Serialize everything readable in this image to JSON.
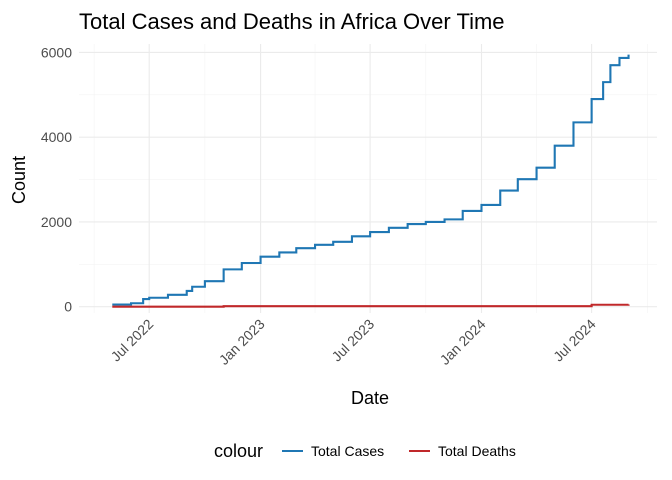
{
  "chart_data": {
    "type": "line",
    "title": "Total Cases and Deaths in Africa Over Time",
    "xlabel": "Date",
    "ylabel": "Count",
    "x_type": "date",
    "xlim": [
      "2022-03-07",
      "2024-10-17"
    ],
    "ylim": [
      -150,
      6200
    ],
    "x_ticks": [
      {
        "date": "2022-07-01",
        "label": "Jul 2022"
      },
      {
        "date": "2023-01-01",
        "label": "Jan 2023"
      },
      {
        "date": "2023-07-01",
        "label": "Jul 2023"
      },
      {
        "date": "2024-01-01",
        "label": "Jan 2024"
      },
      {
        "date": "2024-07-01",
        "label": "Jul 2024"
      }
    ],
    "x_minor_ticks": [
      "2022-04-01",
      "2022-10-01",
      "2023-04-01",
      "2023-10-01",
      "2024-04-01",
      "2024-10-01"
    ],
    "y_ticks": [
      0,
      2000,
      4000,
      6000
    ],
    "y_minor_ticks": [
      1000,
      3000,
      5000
    ],
    "grid": true,
    "legend": {
      "title": "colour",
      "position": "bottom",
      "entries": [
        {
          "label": "Total Cases",
          "color": "#1f77b4"
        },
        {
          "label": "Total Deaths",
          "color": "#c0282a"
        }
      ]
    },
    "series": [
      {
        "name": "Total Cases",
        "color": "#1f77b4",
        "step": true,
        "points": [
          [
            "2022-05-01",
            50
          ],
          [
            "2022-06-01",
            80
          ],
          [
            "2022-06-21",
            180
          ],
          [
            "2022-07-01",
            210
          ],
          [
            "2022-08-01",
            280
          ],
          [
            "2022-09-01",
            370
          ],
          [
            "2022-09-10",
            470
          ],
          [
            "2022-10-01",
            600
          ],
          [
            "2022-11-01",
            880
          ],
          [
            "2022-12-01",
            1030
          ],
          [
            "2023-01-01",
            1180
          ],
          [
            "2023-02-01",
            1280
          ],
          [
            "2023-03-01",
            1380
          ],
          [
            "2023-04-01",
            1460
          ],
          [
            "2023-05-01",
            1530
          ],
          [
            "2023-06-01",
            1660
          ],
          [
            "2023-07-01",
            1760
          ],
          [
            "2023-08-01",
            1860
          ],
          [
            "2023-09-01",
            1950
          ],
          [
            "2023-10-01",
            2000
          ],
          [
            "2023-11-01",
            2060
          ],
          [
            "2023-12-01",
            2260
          ],
          [
            "2024-01-01",
            2400
          ],
          [
            "2024-02-01",
            2740
          ],
          [
            "2024-03-01",
            3010
          ],
          [
            "2024-04-01",
            3280
          ],
          [
            "2024-05-01",
            3800
          ],
          [
            "2024-06-01",
            4350
          ],
          [
            "2024-07-01",
            4900
          ],
          [
            "2024-07-20",
            5300
          ],
          [
            "2024-08-01",
            5700
          ],
          [
            "2024-08-16",
            5870
          ],
          [
            "2024-08-31",
            5950
          ]
        ]
      },
      {
        "name": "Total Deaths",
        "color": "#c0282a",
        "step": true,
        "points": [
          [
            "2022-05-01",
            0
          ],
          [
            "2022-11-01",
            10
          ],
          [
            "2024-07-01",
            45
          ],
          [
            "2024-08-31",
            50
          ]
        ]
      }
    ]
  }
}
